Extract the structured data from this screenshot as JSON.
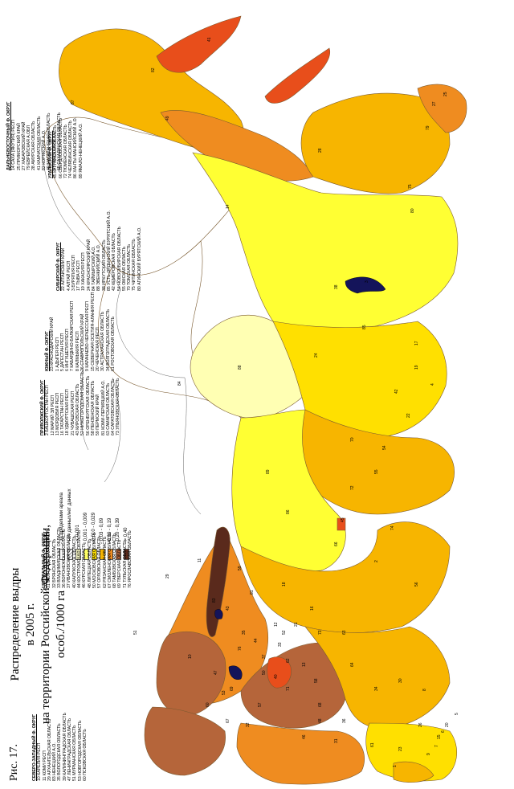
{
  "figure": {
    "fig_label": "Рис. 17.",
    "title_lines": [
      "Распределение  выдры",
      "в 2005 г.",
      "на территории Российской Федерации,",
      "особ./1000 га"
    ]
  },
  "legend": [
    {
      "label": "- за пределами ареала",
      "color": "#ffffff",
      "hatch": false
    },
    {
      "label": "- нет данных/нет данных",
      "color": "#ffffff",
      "hatch": true
    },
    {
      "label": "- < 0,001",
      "color": "#ffffcc",
      "hatch": false
    },
    {
      "label": "- 0,001 - 0,009",
      "color": "#ffff66",
      "hatch": false
    },
    {
      "label": "- 0,010 - 0,029",
      "color": "#ffe000",
      "hatch": false
    },
    {
      "label": "- 0,03 - 0,09",
      "color": "#f7b500",
      "hatch": false
    },
    {
      "label": "- 0,10 - 0,19",
      "color": "#ef8c20",
      "hatch": false
    },
    {
      "label": "- 0,20 - 0,39",
      "color": "#b5653a",
      "hatch": false
    },
    {
      "label": "- > 0,40",
      "color": "#5a2a1c",
      "hatch": false
    }
  ],
  "districts": [
    {
      "title": "СЕВЕРО-ЗАПАДНЫЙ Ф. ОКРУГ",
      "items": [
        "10 КАРЕЛИЯ РЕСП",
        "11 КОМИ РЕСП",
        "29 АРХАНГЕЛЬСКАЯ ОБЛАСТЬ",
        "83 НЕНЕЦКИЙ А.О.",
        "35 ВОЛОГОДСКАЯ ОБЛАСТЬ",
        "39 КАЛИНИНГРАДСКАЯ ОБЛАСТЬ",
        "47 ЛЕНИНГРАДСКАЯ ОБЛАСТЬ",
        "51 МУРМАНСКАЯ ОБЛАСТЬ",
        "53 НОВГОРОДСКАЯ ОБЛАСТЬ",
        "60 ПСКОВСКАЯ ОБЛАСТЬ"
      ]
    },
    {
      "title": "ЦЕНТРАЛЬНЫЙ Ф. ОКРУГ",
      "items": [
        "31 БЕЛГОРОДСКАЯ ОБЛАСТЬ",
        "32 БРЯНСКАЯ ОБЛАСТЬ",
        "33 ВЛАДИМИРСКАЯ ОБЛАСТЬ",
        "36 ВОРОНЕЖСКАЯ ОБЛАСТЬ",
        "37 ИВАНОВСКАЯ ОБЛАСТЬ",
        "40 КАЛУЖСКАЯ ОБЛАСТЬ",
        "44 КОСТРОМСКАЯ ОБЛАСТЬ",
        "46 КУРСКАЯ ОБЛАСТЬ",
        "48 ЛИПЕЦКАЯ ОБЛАСТЬ",
        "50 МОСКОВСКАЯ ОБЛАСТЬ",
        "57 ОРЛОВСКАЯ ОБЛАСТЬ",
        "62 РЯЗАНСКАЯ ОБЛАСТЬ",
        "67 СМОЛЕНСКАЯ ОБЛАСТЬ",
        "68 ТАМБОВСКАЯ ОБЛАСТЬ",
        "69 ТВЕРСКАЯ ОБЛАСТЬ",
        "71 ТУЛЬСКАЯ ОБЛАСТЬ",
        "76 ЯРОСЛАВСКАЯ ОБЛАСТЬ"
      ]
    },
    {
      "title": "ПРИВОЛЖСКИЙ Ф. ОКРУГ",
      "items": [
        "2 БАШКОРТОСТАН РЕСП",
        "12 МАРИЙ ЭЛ РЕСП",
        "13 МОРДОВИЯ РЕСП",
        "16 ТАТАРСТАН РЕСП",
        "18 УДМУРТСКАЯ РЕСП",
        "21 ЧУВАШСКАЯ РЕСП",
        "43 КИРОВСКАЯ ОБЛАСТЬ",
        "52 НИЖЕГОРОДСКАЯ ОБЛАСТЬ",
        "56 ОРЕНБУРГСКАЯ ОБЛАСТЬ",
        "58 ПЕНЗЕНСКАЯ ОБЛАСТЬ",
        "59 ПЕРМСКИЙ КРАЙ",
        "81 КОМИ-ПЕРМЯЦКИЙ А.О.",
        "63 САМАРСКАЯ ОБЛАСТЬ",
        "64 САРАТОВСКАЯ ОБЛАСТЬ",
        "73 УЛЬЯНОВСКАЯ ОБЛАСТЬ"
      ]
    },
    {
      "title": "ЮЖНЫЙ Ф. ОКРУГ",
      "items": [
        "23 КРАСНОДАРСКИЙ КРАЙ",
        "1 АДЫГЕЯ РЕСП",
        "5 ДАГЕСТАН РЕСП",
        "6 ИНГУШЕТИЯ РЕСП",
        "7 КАБАРДИНО-БАЛКАРСКАЯ РЕСП",
        "8 КАЛМЫКИЯ РЕСП",
        "26 СТАВРОПОЛЬСКИЙ КРАЙ",
        "9 КАРАЧАЕВО-ЧЕРКЕССКАЯ РЕСП",
        "15 СЕВЕРНАЯ ОСЕТИЯ-АЛАНИЯ РЕСП",
        "20 ЧЕЧЕНСКАЯ РЕСП",
        "30 АСТРАХАНСКАЯ ОБЛАСТЬ",
        "34 ВОЛГОГРАДСКАЯ ОБЛАСТЬ",
        "61 РОСТОВСКАЯ ОБЛАСТЬ"
      ]
    },
    {
      "title": "УРАЛЬСКИЙ Ф. ОКРУГ",
      "items": [
        "45 КУРГАНСКАЯ ОБЛАСТЬ",
        "66 СВЕРДЛОВСКАЯ ОБЛАСТЬ",
        "72 ТЮМЕНСКАЯ ОБЛАСТЬ",
        "74 ЧЕЛЯБИНСКАЯ ОБЛАСТЬ",
        "86 ХАНТЫ-МАНСИЙСКИЙ А.О.",
        "89 ЯМАЛО-НЕНЕЦКИЙ А.О."
      ]
    },
    {
      "title": "СИБИРСКИЙ Ф. ОКРУГ",
      "items": [
        "22 АЛТАЙСКИЙ КРАЙ",
        "4 АЛТАЙ РЕСП",
        "3 БУРЯТИЯ РЕСП",
        "17 ТЫВА РЕСП",
        "19 ХАКАСИЯ РЕСП",
        "24 КРАСНОЯРСКИЙ КРАЙ",
        "84 ТАЙМЫРСКИЙ А.О.",
        "88 ЭВЕНКИЙСКИЙ А.О.",
        "38 ИРКУТСКАЯ ОБЛАСТЬ",
        "85 УСТЬ-ОРДЫНСКИЙ БУРЯТСКИЙ А.О.",
        "42 КЕМЕРОВСКАЯ ОБЛАСТЬ",
        "54 НОВОСИБИРСКАЯ ОБЛАСТЬ",
        "55 ОМСКАЯ ОБЛАСТЬ",
        "70 ТОМСКАЯ ОБЛАСТЬ",
        "75 ЧИТИНСКАЯ ОБЛАСТЬ",
        "80 АГИНСКИЙ БУРЯТСКИЙ А.О."
      ]
    },
    {
      "title": "ДАЛЬНЕВОСТОЧНЫЙ Ф. ОКРУГ",
      "items": [
        "14 САХА (ЯКУТИЯ) РЕСП",
        "25 ПРИМОРСКИЙ КРАЙ",
        "27 ХАБАРОВСКИЙ КРАЙ",
        "79 ЕВРЕЙСКАЯ А.ОБЛ",
        "28 АМУРСКАЯ ОБЛАСТЬ",
        "41 КАМЧАТСКАЯ ОБЛАСТЬ",
        "82 КОРЯКСКИЙ А.О.",
        "49 МАГАДАНСКАЯ ОБЛАСТЬ",
        "87 ЧУКОТСКИЙ А.О.",
        "65 САХАЛИНСКАЯ ОБЛАСТЬ"
      ]
    }
  ],
  "region_labels": [
    "41",
    "82",
    "87",
    "49",
    "25",
    "27",
    "79",
    "28",
    "14",
    "75",
    "80",
    "3",
    "38",
    "85",
    "88",
    "24",
    "84",
    "17",
    "19",
    "4",
    "42",
    "22",
    "70",
    "54",
    "55",
    "89",
    "86",
    "72",
    "45",
    "74",
    "66",
    "11",
    "59",
    "81",
    "18",
    "2",
    "56",
    "43",
    "83",
    "29",
    "51",
    "10",
    "47",
    "60",
    "53",
    "35",
    "76",
    "44",
    "37",
    "69",
    "67",
    "32",
    "40",
    "50",
    "57",
    "71",
    "62",
    "33",
    "52",
    "12",
    "21",
    "16",
    "73",
    "13",
    "58",
    "63",
    "64",
    "68",
    "48",
    "36",
    "46",
    "31",
    "34",
    "61",
    "30",
    "8",
    "26",
    "23",
    "1",
    "9",
    "7",
    "15",
    "6",
    "20",
    "5"
  ]
}
